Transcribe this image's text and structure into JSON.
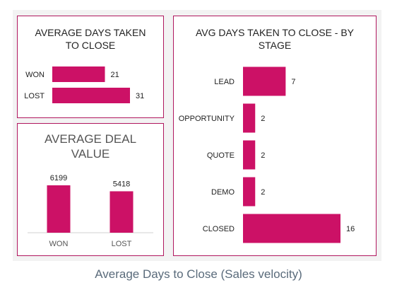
{
  "colors": {
    "bar": "#cc1166",
    "border": "#b0175f",
    "text": "#222222"
  },
  "caption": "Average Days to Close (Sales velocity)",
  "chart_data": [
    {
      "type": "bar",
      "orientation": "horizontal",
      "title_lines": [
        "AVERAGE DAYS TAKEN",
        "TO CLOSE"
      ],
      "categories": [
        "WON",
        "LOST"
      ],
      "values": [
        21,
        31
      ]
    },
    {
      "type": "bar",
      "orientation": "vertical",
      "title_lines": [
        "AVERAGE DEAL",
        "VALUE"
      ],
      "categories": [
        "WON",
        "LOST"
      ],
      "values": [
        6199,
        5418
      ]
    },
    {
      "type": "bar",
      "orientation": "horizontal",
      "title_lines": [
        "AVG DAYS TAKEN TO CLOSE - BY",
        "STAGE"
      ],
      "categories": [
        "LEAD",
        "OPPORTUNITY",
        "QUOTE",
        "DEMO",
        "CLOSED"
      ],
      "values": [
        7,
        2,
        2,
        2,
        16
      ]
    }
  ]
}
